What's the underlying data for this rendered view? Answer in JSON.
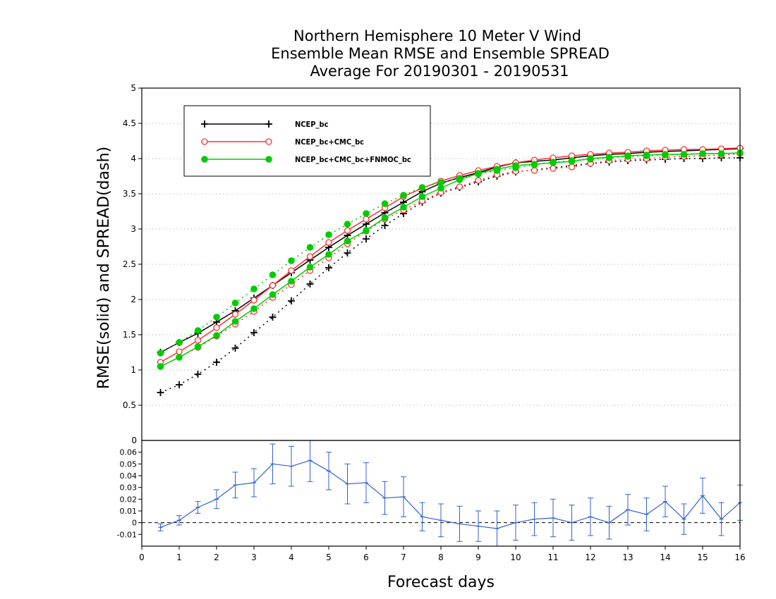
{
  "chart_data": [
    {
      "type": "line",
      "title_lines": [
        "Northern Hemisphere 10 Meter V Wind",
        "Ensemble Mean RMSE and Ensemble SPREAD",
        "Average For 20190301 - 20190531"
      ],
      "ylabel": "RMSE(solid) and SPREAD(dash)",
      "xlim": [
        0,
        16
      ],
      "ylim": [
        0,
        5
      ],
      "yticks": [
        "0.5",
        "1",
        "1.5",
        "2",
        "2.5",
        "3",
        "3.5",
        "4",
        "4.5",
        "5"
      ],
      "grid": "dotted-horizontal",
      "legend_position": "top-left",
      "x": [
        0.5,
        1,
        1.5,
        2,
        2.5,
        3,
        3.5,
        4,
        4.5,
        5,
        5.5,
        6,
        6.5,
        7,
        7.5,
        8,
        8.5,
        9,
        9.5,
        10,
        10.5,
        11,
        11.5,
        12,
        12.5,
        13,
        13.5,
        14,
        14.5,
        15,
        15.5,
        16
      ],
      "series": [
        {
          "name": "NCEP_bc",
          "color": "#000000",
          "marker": "plus",
          "rmse": [
            1.25,
            1.39,
            1.52,
            1.68,
            1.84,
            2.02,
            2.2,
            2.38,
            2.56,
            2.74,
            2.91,
            3.07,
            3.23,
            3.38,
            3.53,
            3.65,
            3.73,
            3.8,
            3.88,
            3.94,
            3.96,
            3.98,
            4.01,
            4.04,
            4.06,
            4.07,
            4.09,
            4.1,
            4.11,
            4.12,
            4.13,
            4.14
          ],
          "spread": [
            0.68,
            0.79,
            0.94,
            1.11,
            1.31,
            1.53,
            1.75,
            1.98,
            2.22,
            2.45,
            2.66,
            2.86,
            3.05,
            3.22,
            3.38,
            3.51,
            3.59,
            3.67,
            3.75,
            3.81,
            3.84,
            3.87,
            3.9,
            3.93,
            3.95,
            3.97,
            3.98,
            3.99,
            4.0,
            4.0,
            4.01,
            4.01
          ]
        },
        {
          "name": "NCEP_bc+CMC_bc",
          "color": "#ff3030",
          "marker": "circle-open",
          "rmse": [
            1.11,
            1.26,
            1.42,
            1.6,
            1.79,
            1.99,
            2.2,
            2.41,
            2.61,
            2.81,
            2.98,
            3.14,
            3.3,
            3.46,
            3.58,
            3.68,
            3.76,
            3.83,
            3.89,
            3.94,
            3.98,
            4.01,
            4.04,
            4.06,
            4.08,
            4.09,
            4.11,
            4.12,
            4.13,
            4.13,
            4.14,
            4.15
          ],
          "spread": [
            1.05,
            1.18,
            1.32,
            1.48,
            1.65,
            1.83,
            2.03,
            2.21,
            2.41,
            2.59,
            2.79,
            2.97,
            3.14,
            3.27,
            3.4,
            3.52,
            3.6,
            3.69,
            3.77,
            3.82,
            3.83,
            3.86,
            3.88,
            3.93,
            3.97,
            3.99,
            4.0,
            4.02,
            4.03,
            4.04,
            4.05,
            4.07
          ]
        },
        {
          "name": "NCEP_bc+CMC_bc+FNMOC_bc",
          "color": "#00cc00",
          "marker": "circle-filled",
          "rmse": [
            1.05,
            1.18,
            1.33,
            1.49,
            1.69,
            1.87,
            2.07,
            2.26,
            2.46,
            2.64,
            2.83,
            2.98,
            3.16,
            3.31,
            3.46,
            3.58,
            3.7,
            3.79,
            3.85,
            3.9,
            3.92,
            3.94,
            3.96,
            4.0,
            4.02,
            4.04,
            4.05,
            4.06,
            4.06,
            4.07,
            4.07,
            4.08
          ],
          "spread": [
            1.24,
            1.39,
            1.56,
            1.75,
            1.95,
            2.15,
            2.35,
            2.55,
            2.74,
            2.92,
            3.07,
            3.22,
            3.36,
            3.48,
            3.59,
            3.66,
            3.72,
            3.78,
            3.83,
            3.87,
            3.91,
            3.95,
            3.97,
            3.99,
            4.01,
            4.03,
            4.04,
            4.05,
            4.06,
            4.07,
            4.07,
            4.08
          ]
        }
      ]
    },
    {
      "type": "line",
      "description_role": "difference panel",
      "xlabel": "Forecast days",
      "xticks": [
        "0",
        "1",
        "2",
        "3",
        "4",
        "5",
        "6",
        "7",
        "8",
        "9",
        "10",
        "11",
        "12",
        "13",
        "14",
        "15",
        "16"
      ],
      "xlim": [
        0,
        16
      ],
      "ylim": [
        -0.02,
        0.07
      ],
      "yticks": [
        "-0.01",
        "0",
        "0.01",
        "0.02",
        "0.03",
        "0.04",
        "0.05",
        "0.06"
      ],
      "top_tick_label": "0",
      "zero_line": "dashed",
      "color": "#3060d0",
      "x": [
        0.5,
        1,
        1.5,
        2,
        2.5,
        3,
        3.5,
        4,
        4.5,
        5,
        5.5,
        6,
        6.5,
        7,
        7.5,
        8,
        8.5,
        9,
        9.5,
        10,
        10.5,
        11,
        11.5,
        12,
        12.5,
        13,
        13.5,
        14,
        14.5,
        15,
        15.5,
        16
      ],
      "values": [
        -0.004,
        0.002,
        0.013,
        0.02,
        0.032,
        0.034,
        0.05,
        0.048,
        0.053,
        0.044,
        0.033,
        0.034,
        0.021,
        0.022,
        0.005,
        0.002,
        -0.001,
        -0.003,
        -0.005,
        0.0,
        0.003,
        0.004,
        0.0,
        0.005,
        0.0,
        0.011,
        0.007,
        0.018,
        0.003,
        0.023,
        0.003,
        0.017
      ],
      "err": [
        0.003,
        0.004,
        0.005,
        0.008,
        0.011,
        0.012,
        0.017,
        0.017,
        0.018,
        0.016,
        0.017,
        0.017,
        0.014,
        0.017,
        0.012,
        0.014,
        0.015,
        0.013,
        0.015,
        0.015,
        0.014,
        0.016,
        0.015,
        0.016,
        0.014,
        0.013,
        0.014,
        0.013,
        0.013,
        0.015,
        0.014,
        0.015
      ]
    }
  ]
}
